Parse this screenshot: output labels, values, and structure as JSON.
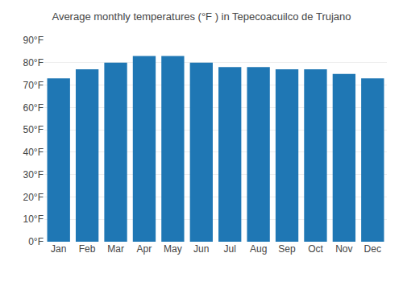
{
  "chart_data": {
    "type": "bar",
    "title": "Average monthly temperatures (°F ) in Tepecoacuilco de Trujano",
    "categories": [
      "Jan",
      "Feb",
      "Mar",
      "Apr",
      "May",
      "Jun",
      "Jul",
      "Aug",
      "Sep",
      "Oct",
      "Nov",
      "Dec"
    ],
    "values": [
      73,
      77,
      80,
      83,
      83,
      80,
      78,
      78,
      77,
      77,
      75,
      73
    ],
    "ylim": [
      0,
      90
    ],
    "yticks": [
      {
        "value": 0,
        "label": "0°F"
      },
      {
        "value": 10,
        "label": "10°F"
      },
      {
        "value": 20,
        "label": "20°F"
      },
      {
        "value": 30,
        "label": "30°F"
      },
      {
        "value": 40,
        "label": "40°F"
      },
      {
        "value": 50,
        "label": "50°F"
      },
      {
        "value": 60,
        "label": "60°F"
      },
      {
        "value": 70,
        "label": "70°F"
      },
      {
        "value": 80,
        "label": "80°F"
      },
      {
        "value": 90,
        "label": "90°F"
      }
    ],
    "grid": true
  }
}
